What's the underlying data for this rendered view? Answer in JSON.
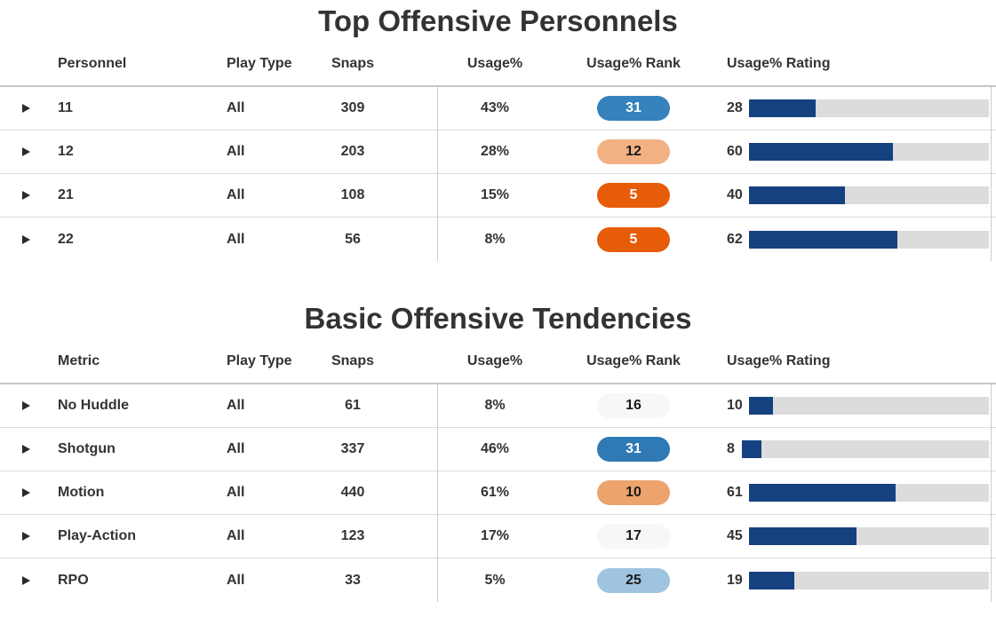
{
  "colors": {
    "bar_fill": "#164180",
    "bar_track": "#dcdcdc",
    "row_border": "#dcdcdc",
    "header_border": "#c6c6c6",
    "pane_divider": "#cccccc",
    "text": "#333333"
  },
  "tables": [
    {
      "title": "Top Offensive Personnels",
      "columns": [
        "Personnel",
        "Play Type",
        "Snaps",
        "Usage%",
        "Usage% Rank",
        "Usage% Rating"
      ],
      "rows": [
        {
          "name": "11",
          "play_type": "All",
          "snaps": "309",
          "usage_pct": "43%",
          "rank": "31",
          "rank_bg": "#3582bc",
          "rank_fg": "#ffffff",
          "rating": 28
        },
        {
          "name": "12",
          "play_type": "All",
          "snaps": "203",
          "usage_pct": "28%",
          "rank": "12",
          "rank_bg": "#f2b183",
          "rank_fg": "#1a1a1a",
          "rating": 60
        },
        {
          "name": "21",
          "play_type": "All",
          "snaps": "108",
          "usage_pct": "15%",
          "rank": "5",
          "rank_bg": "#e65c09",
          "rank_fg": "#ffffff",
          "rating": 40
        },
        {
          "name": "22",
          "play_type": "All",
          "snaps": "56",
          "usage_pct": "8%",
          "rank": "5",
          "rank_bg": "#e65c09",
          "rank_fg": "#ffffff",
          "rating": 62
        }
      ]
    },
    {
      "title": "Basic Offensive Tendencies",
      "columns": [
        "Metric",
        "Play Type",
        "Snaps",
        "Usage%",
        "Usage% Rank",
        "Usage% Rating"
      ],
      "rows": [
        {
          "name": "No Huddle",
          "play_type": "All",
          "snaps": "61",
          "usage_pct": "8%",
          "rank": "16",
          "rank_bg": "#f7f7f7",
          "rank_fg": "#1a1a1a",
          "rating": 10
        },
        {
          "name": "Shotgun",
          "play_type": "All",
          "snaps": "337",
          "usage_pct": "46%",
          "rank": "31",
          "rank_bg": "#2f79b4",
          "rank_fg": "#ffffff",
          "rating": 8
        },
        {
          "name": "Motion",
          "play_type": "All",
          "snaps": "440",
          "usage_pct": "61%",
          "rank": "10",
          "rank_bg": "#eda36c",
          "rank_fg": "#1a1a1a",
          "rating": 61
        },
        {
          "name": "Play-Action",
          "play_type": "All",
          "snaps": "123",
          "usage_pct": "17%",
          "rank": "17",
          "rank_bg": "#f7f7f7",
          "rank_fg": "#1a1a1a",
          "rating": 45
        },
        {
          "name": "RPO",
          "play_type": "All",
          "snaps": "33",
          "usage_pct": "5%",
          "rank": "25",
          "rank_bg": "#9fc4df",
          "rank_fg": "#1a1a1a",
          "rating": 19
        }
      ]
    }
  ],
  "chart_data": [
    {
      "type": "table",
      "title": "Top Offensive Personnels",
      "columns": [
        "Personnel",
        "Play Type",
        "Snaps",
        "Usage%",
        "Usage% Rank",
        "Usage% Rating"
      ],
      "rows": [
        [
          "11",
          "All",
          309,
          "43%",
          31,
          28
        ],
        [
          "12",
          "All",
          203,
          "28%",
          12,
          60
        ],
        [
          "21",
          "All",
          108,
          "15%",
          5,
          40
        ],
        [
          "22",
          "All",
          56,
          "8%",
          5,
          62
        ]
      ],
      "notes": "Usage% Rank shown as colored pill (diverging orange-to-blue scale, low rank = orange, high rank = blue); Usage% Rating shown as navy horizontal bar on 0-100 gray track"
    },
    {
      "type": "table",
      "title": "Basic Offensive Tendencies",
      "columns": [
        "Metric",
        "Play Type",
        "Snaps",
        "Usage%",
        "Usage% Rank",
        "Usage% Rating"
      ],
      "rows": [
        [
          "No Huddle",
          "All",
          61,
          "8%",
          16,
          10
        ],
        [
          "Shotgun",
          "All",
          337,
          "46%",
          31,
          8
        ],
        [
          "Motion",
          "All",
          440,
          "61%",
          10,
          61
        ],
        [
          "Play-Action",
          "All",
          123,
          "17%",
          17,
          45
        ],
        [
          "RPO",
          "All",
          33,
          "5%",
          25,
          19
        ]
      ],
      "notes": "Usage% Rank shown as colored pill (diverging orange-to-blue scale); Usage% Rating shown as navy horizontal bar on 0-100 gray track"
    }
  ]
}
